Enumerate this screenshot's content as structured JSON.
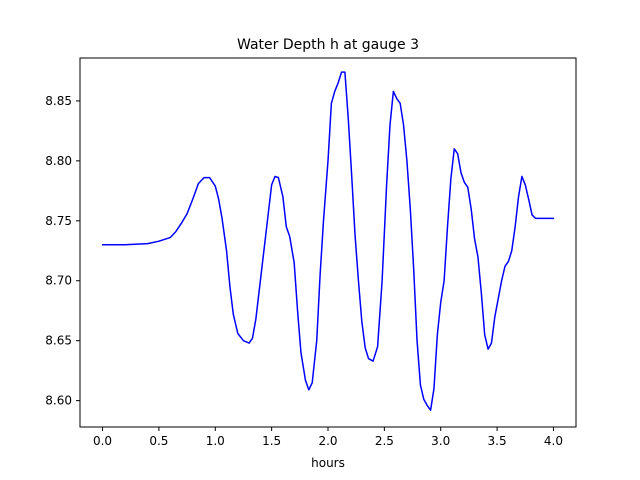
{
  "chart_data": {
    "type": "line",
    "title": "Water Depth h at gauge 3",
    "xlabel": "hours",
    "ylabel": "",
    "xlim": [
      -0.2,
      4.2
    ],
    "ylim": [
      8.578,
      8.8858
    ],
    "xticks": [
      {
        "value": 0.0,
        "label": "0.0"
      },
      {
        "value": 0.5,
        "label": "0.5"
      },
      {
        "value": 1.0,
        "label": "1.0"
      },
      {
        "value": 1.5,
        "label": "1.5"
      },
      {
        "value": 2.0,
        "label": "2.0"
      },
      {
        "value": 2.5,
        "label": "2.5"
      },
      {
        "value": 3.0,
        "label": "3.0"
      },
      {
        "value": 3.5,
        "label": "3.5"
      },
      {
        "value": 4.0,
        "label": "4.0"
      }
    ],
    "yticks": [
      {
        "value": 8.6,
        "label": "8.60"
      },
      {
        "value": 8.65,
        "label": "8.65"
      },
      {
        "value": 8.7,
        "label": "8.70"
      },
      {
        "value": 8.75,
        "label": "8.75"
      },
      {
        "value": 8.8,
        "label": "8.80"
      },
      {
        "value": 8.85,
        "label": "8.85"
      }
    ],
    "grid": false,
    "series": [
      {
        "color": "#0000ff",
        "x": [
          0.0,
          0.2,
          0.4,
          0.5,
          0.6,
          0.65,
          0.7,
          0.75,
          0.8,
          0.85,
          0.9,
          0.95,
          1.0,
          1.03,
          1.06,
          1.1,
          1.13,
          1.16,
          1.2,
          1.25,
          1.3,
          1.33,
          1.36,
          1.4,
          1.45,
          1.5,
          1.53,
          1.56,
          1.6,
          1.63,
          1.66,
          1.7,
          1.73,
          1.76,
          1.8,
          1.83,
          1.86,
          1.9,
          1.93,
          1.96,
          2.0,
          2.03,
          2.06,
          2.09,
          2.12,
          2.15,
          2.18,
          2.21,
          2.24,
          2.27,
          2.3,
          2.33,
          2.36,
          2.4,
          2.44,
          2.48,
          2.52,
          2.55,
          2.58,
          2.61,
          2.64,
          2.67,
          2.7,
          2.73,
          2.76,
          2.79,
          2.82,
          2.85,
          2.88,
          2.91,
          2.94,
          2.97,
          3.0,
          3.03,
          3.06,
          3.09,
          3.12,
          3.15,
          3.18,
          3.21,
          3.24,
          3.27,
          3.3,
          3.33,
          3.36,
          3.39,
          3.42,
          3.45,
          3.48,
          3.51,
          3.54,
          3.57,
          3.6,
          3.63,
          3.66,
          3.69,
          3.72,
          3.75,
          3.78,
          3.81,
          3.84,
          3.87,
          3.9,
          3.93,
          3.96,
          4.0
        ],
        "y": [
          8.73,
          8.73,
          8.731,
          8.733,
          8.736,
          8.741,
          8.748,
          8.756,
          8.768,
          8.781,
          8.786,
          8.786,
          8.779,
          8.768,
          8.752,
          8.725,
          8.695,
          8.672,
          8.656,
          8.65,
          8.648,
          8.652,
          8.668,
          8.7,
          8.74,
          8.78,
          8.787,
          8.786,
          8.77,
          8.745,
          8.737,
          8.715,
          8.675,
          8.64,
          8.617,
          8.609,
          8.615,
          8.65,
          8.705,
          8.75,
          8.8,
          8.848,
          8.858,
          8.865,
          8.874,
          8.874,
          8.835,
          8.788,
          8.738,
          8.7,
          8.666,
          8.644,
          8.635,
          8.633,
          8.645,
          8.7,
          8.78,
          8.83,
          8.858,
          8.852,
          8.848,
          8.83,
          8.8,
          8.76,
          8.71,
          8.65,
          8.613,
          8.601,
          8.596,
          8.592,
          8.61,
          8.655,
          8.682,
          8.7,
          8.745,
          8.785,
          8.81,
          8.806,
          8.79,
          8.782,
          8.778,
          8.76,
          8.735,
          8.72,
          8.69,
          8.655,
          8.643,
          8.648,
          8.67,
          8.685,
          8.7,
          8.712,
          8.716,
          8.725,
          8.745,
          8.77,
          8.787,
          8.78,
          8.768,
          8.755,
          8.752,
          8.752,
          8.752,
          8.752,
          8.752,
          8.752
        ]
      }
    ]
  }
}
